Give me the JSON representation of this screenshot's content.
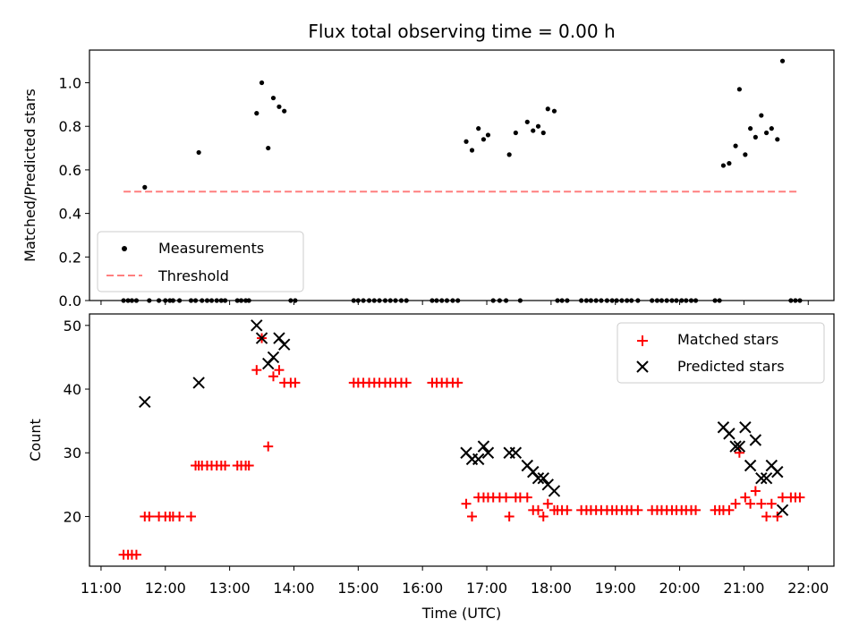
{
  "chart_data": [
    {
      "type": "scatter",
      "title": "Flux total observing time = 0.00 h",
      "ylabel": "Matched/Predicted stars",
      "xlabel": "",
      "ylim": [
        0.0,
        1.15
      ],
      "yticks": [
        "0.0",
        "0.2",
        "0.4",
        "0.6",
        "0.8",
        "1.0"
      ],
      "x_unit": "hours UTC",
      "legend": {
        "placement": "lower-left",
        "entries": [
          "Measurements",
          "Threshold"
        ]
      },
      "series": [
        {
          "name": "Measurements",
          "color": "#000000",
          "marker": "dot",
          "points": [
            [
              11.35,
              0
            ],
            [
              11.42,
              0
            ],
            [
              11.48,
              0
            ],
            [
              11.55,
              0
            ],
            [
              11.68,
              0.52
            ],
            [
              11.75,
              0
            ],
            [
              11.9,
              0
            ],
            [
              12.0,
              0
            ],
            [
              12.07,
              0
            ],
            [
              12.12,
              0
            ],
            [
              12.22,
              0
            ],
            [
              12.4,
              0
            ],
            [
              12.47,
              0
            ],
            [
              12.52,
              0.68
            ],
            [
              12.57,
              0
            ],
            [
              12.65,
              0
            ],
            [
              12.72,
              0
            ],
            [
              12.8,
              0
            ],
            [
              12.87,
              0
            ],
            [
              12.93,
              0
            ],
            [
              13.12,
              0
            ],
            [
              13.18,
              0
            ],
            [
              13.25,
              0
            ],
            [
              13.3,
              0
            ],
            [
              13.42,
              0.86
            ],
            [
              13.5,
              1.0
            ],
            [
              13.6,
              0.7
            ],
            [
              13.68,
              0.93
            ],
            [
              13.77,
              0.89
            ],
            [
              13.85,
              0.87
            ],
            [
              13.95,
              0
            ],
            [
              14.02,
              0
            ],
            [
              14.93,
              0
            ],
            [
              15.0,
              0
            ],
            [
              15.08,
              0
            ],
            [
              15.17,
              0
            ],
            [
              15.25,
              0
            ],
            [
              15.33,
              0
            ],
            [
              15.42,
              0
            ],
            [
              15.5,
              0
            ],
            [
              15.58,
              0
            ],
            [
              15.67,
              0
            ],
            [
              15.75,
              0
            ],
            [
              16.15,
              0
            ],
            [
              16.22,
              0
            ],
            [
              16.3,
              0
            ],
            [
              16.38,
              0
            ],
            [
              16.47,
              0
            ],
            [
              16.55,
              0
            ],
            [
              16.68,
              0.73
            ],
            [
              16.77,
              0.69
            ],
            [
              16.87,
              0.79
            ],
            [
              16.95,
              0.74
            ],
            [
              17.02,
              0.76
            ],
            [
              17.1,
              0
            ],
            [
              17.2,
              0
            ],
            [
              17.3,
              0
            ],
            [
              17.35,
              0.67
            ],
            [
              17.45,
              0.77
            ],
            [
              17.52,
              0
            ],
            [
              17.63,
              0.82
            ],
            [
              17.72,
              0.78
            ],
            [
              17.8,
              0.8
            ],
            [
              17.88,
              0.77
            ],
            [
              17.95,
              0.88
            ],
            [
              18.05,
              0.87
            ],
            [
              18.1,
              0
            ],
            [
              18.17,
              0
            ],
            [
              18.25,
              0
            ],
            [
              18.47,
              0
            ],
            [
              18.55,
              0
            ],
            [
              18.62,
              0
            ],
            [
              18.7,
              0
            ],
            [
              18.78,
              0
            ],
            [
              18.87,
              0
            ],
            [
              18.95,
              0
            ],
            [
              19.02,
              0
            ],
            [
              19.1,
              0
            ],
            [
              19.18,
              0
            ],
            [
              19.25,
              0
            ],
            [
              19.35,
              0
            ],
            [
              19.57,
              0
            ],
            [
              19.65,
              0
            ],
            [
              19.72,
              0
            ],
            [
              19.8,
              0
            ],
            [
              19.88,
              0
            ],
            [
              19.95,
              0
            ],
            [
              20.03,
              0
            ],
            [
              20.1,
              0
            ],
            [
              20.18,
              0
            ],
            [
              20.25,
              0
            ],
            [
              20.55,
              0
            ],
            [
              20.62,
              0
            ],
            [
              20.68,
              0.62
            ],
            [
              20.77,
              0.63
            ],
            [
              20.87,
              0.71
            ],
            [
              20.93,
              0.97
            ],
            [
              21.02,
              0.67
            ],
            [
              21.1,
              0.79
            ],
            [
              21.18,
              0.75
            ],
            [
              21.27,
              0.85
            ],
            [
              21.35,
              0.77
            ],
            [
              21.43,
              0.79
            ],
            [
              21.52,
              0.74
            ],
            [
              21.6,
              1.1
            ],
            [
              21.73,
              0
            ],
            [
              21.8,
              0
            ],
            [
              21.87,
              0
            ]
          ]
        },
        {
          "name": "Threshold",
          "color": "#ff7f7f",
          "style": "dashed",
          "x": [
            11.35,
            21.87
          ],
          "values": [
            0.5,
            0.5
          ]
        }
      ]
    },
    {
      "type": "scatter",
      "title": "",
      "ylabel": "Count",
      "xlabel": "Time (UTC)",
      "ylim": [
        12.2,
        51.8
      ],
      "yticks": [
        "20",
        "30",
        "40",
        "50"
      ],
      "xlim": [
        10.82,
        22.4
      ],
      "xticks": [
        "11:00",
        "12:00",
        "13:00",
        "14:00",
        "15:00",
        "16:00",
        "17:00",
        "18:00",
        "19:00",
        "20:00",
        "21:00",
        "22:00"
      ],
      "legend": {
        "placement": "upper-right",
        "entries": [
          "Matched stars",
          "Predicted stars"
        ]
      },
      "series": [
        {
          "name": "Matched stars",
          "color": "#ff0000",
          "marker": "plus",
          "points": [
            [
              11.35,
              14
            ],
            [
              11.42,
              14
            ],
            [
              11.48,
              14
            ],
            [
              11.55,
              14
            ],
            [
              11.68,
              20
            ],
            [
              11.75,
              20
            ],
            [
              11.9,
              20
            ],
            [
              12.0,
              20
            ],
            [
              12.07,
              20
            ],
            [
              12.12,
              20
            ],
            [
              12.22,
              20
            ],
            [
              12.4,
              20
            ],
            [
              12.47,
              28
            ],
            [
              12.52,
              28
            ],
            [
              12.57,
              28
            ],
            [
              12.65,
              28
            ],
            [
              12.72,
              28
            ],
            [
              12.8,
              28
            ],
            [
              12.87,
              28
            ],
            [
              12.93,
              28
            ],
            [
              13.12,
              28
            ],
            [
              13.18,
              28
            ],
            [
              13.25,
              28
            ],
            [
              13.3,
              28
            ],
            [
              13.42,
              43
            ],
            [
              13.5,
              48
            ],
            [
              13.6,
              31
            ],
            [
              13.68,
              42
            ],
            [
              13.77,
              43
            ],
            [
              13.85,
              41
            ],
            [
              13.95,
              41
            ],
            [
              14.02,
              41
            ],
            [
              14.93,
              41
            ],
            [
              15.0,
              41
            ],
            [
              15.08,
              41
            ],
            [
              15.17,
              41
            ],
            [
              15.25,
              41
            ],
            [
              15.33,
              41
            ],
            [
              15.42,
              41
            ],
            [
              15.5,
              41
            ],
            [
              15.58,
              41
            ],
            [
              15.67,
              41
            ],
            [
              15.75,
              41
            ],
            [
              16.15,
              41
            ],
            [
              16.22,
              41
            ],
            [
              16.3,
              41
            ],
            [
              16.38,
              41
            ],
            [
              16.47,
              41
            ],
            [
              16.55,
              41
            ],
            [
              16.68,
              22
            ],
            [
              16.77,
              20
            ],
            [
              16.87,
              23
            ],
            [
              16.95,
              23
            ],
            [
              17.02,
              23
            ],
            [
              17.1,
              23
            ],
            [
              17.2,
              23
            ],
            [
              17.3,
              23
            ],
            [
              17.35,
              20
            ],
            [
              17.45,
              23
            ],
            [
              17.52,
              23
            ],
            [
              17.63,
              23
            ],
            [
              17.72,
              21
            ],
            [
              17.8,
              21
            ],
            [
              17.88,
              20
            ],
            [
              17.95,
              22
            ],
            [
              18.05,
              21
            ],
            [
              18.1,
              21
            ],
            [
              18.17,
              21
            ],
            [
              18.25,
              21
            ],
            [
              18.47,
              21
            ],
            [
              18.55,
              21
            ],
            [
              18.62,
              21
            ],
            [
              18.7,
              21
            ],
            [
              18.78,
              21
            ],
            [
              18.87,
              21
            ],
            [
              18.95,
              21
            ],
            [
              19.02,
              21
            ],
            [
              19.1,
              21
            ],
            [
              19.18,
              21
            ],
            [
              19.25,
              21
            ],
            [
              19.35,
              21
            ],
            [
              19.57,
              21
            ],
            [
              19.65,
              21
            ],
            [
              19.72,
              21
            ],
            [
              19.8,
              21
            ],
            [
              19.88,
              21
            ],
            [
              19.95,
              21
            ],
            [
              20.03,
              21
            ],
            [
              20.1,
              21
            ],
            [
              20.18,
              21
            ],
            [
              20.25,
              21
            ],
            [
              20.55,
              21
            ],
            [
              20.62,
              21
            ],
            [
              20.68,
              21
            ],
            [
              20.77,
              21
            ],
            [
              20.87,
              22
            ],
            [
              20.93,
              30
            ],
            [
              21.02,
              23
            ],
            [
              21.1,
              22
            ],
            [
              21.18,
              24
            ],
            [
              21.27,
              22
            ],
            [
              21.35,
              20
            ],
            [
              21.43,
              22
            ],
            [
              21.52,
              20
            ],
            [
              21.6,
              23
            ],
            [
              21.73,
              23
            ],
            [
              21.8,
              23
            ],
            [
              21.87,
              23
            ]
          ]
        },
        {
          "name": "Predicted stars",
          "color": "#000000",
          "marker": "x",
          "points": [
            [
              11.68,
              38
            ],
            [
              12.52,
              41
            ],
            [
              13.42,
              50
            ],
            [
              13.5,
              48
            ],
            [
              13.6,
              44
            ],
            [
              13.68,
              45
            ],
            [
              13.77,
              48
            ],
            [
              13.85,
              47
            ],
            [
              16.68,
              30
            ],
            [
              16.77,
              29
            ],
            [
              16.87,
              29
            ],
            [
              16.95,
              31
            ],
            [
              17.02,
              30
            ],
            [
              17.35,
              30
            ],
            [
              17.45,
              30
            ],
            [
              17.63,
              28
            ],
            [
              17.72,
              27
            ],
            [
              17.8,
              26
            ],
            [
              17.88,
              26
            ],
            [
              17.95,
              25
            ],
            [
              18.05,
              24
            ],
            [
              20.68,
              34
            ],
            [
              20.77,
              33
            ],
            [
              20.87,
              31
            ],
            [
              20.93,
              31
            ],
            [
              21.02,
              34
            ],
            [
              21.1,
              28
            ],
            [
              21.18,
              32
            ],
            [
              21.27,
              26
            ],
            [
              21.35,
              26
            ],
            [
              21.43,
              28
            ],
            [
              21.52,
              27
            ],
            [
              21.6,
              21
            ]
          ]
        }
      ]
    }
  ]
}
